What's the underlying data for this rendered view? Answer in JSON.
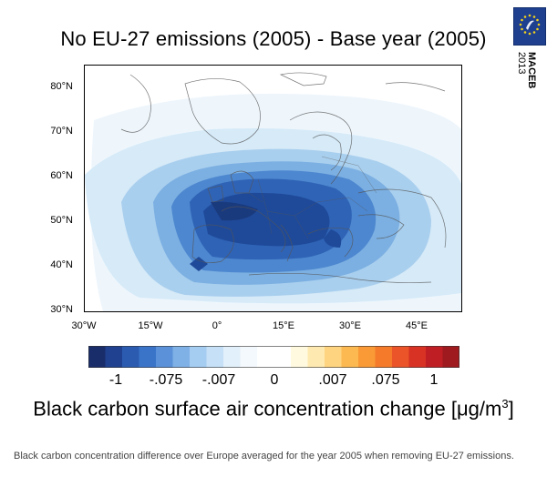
{
  "title": "No EU-27 emissions (2005) - Base year (2005)",
  "logo": {
    "text": "MACEB",
    "year": "2013",
    "background": "#1f3f8f",
    "star_color": "#f2d21b"
  },
  "map": {
    "lat_ticks": [
      "80°N",
      "70°N",
      "60°N",
      "50°N",
      "40°N",
      "30°N"
    ],
    "lon_ticks": [
      "30°W",
      "15°W",
      "0°",
      "15°E",
      "30°E",
      "45°E"
    ],
    "lat_range": [
      30,
      85
    ],
    "lon_range": [
      -30,
      55
    ]
  },
  "colorbar": {
    "colors": [
      "#1a2d6b",
      "#1f418f",
      "#2b5bb0",
      "#3a74c9",
      "#5a91d8",
      "#7fb0e6",
      "#a5cdf1",
      "#c6e0f7",
      "#e2f0fb",
      "#f4f9fd",
      "#ffffff",
      "#ffffff",
      "#fff9df",
      "#fee9b0",
      "#fed480",
      "#fdb951",
      "#f99a36",
      "#f57a2a",
      "#ea5428",
      "#d83225",
      "#bf1f24",
      "#9e1a1f"
    ],
    "labels": [
      "-1",
      "-.075",
      "-.007",
      "0",
      ".007",
      ".075",
      "1"
    ]
  },
  "variable_title": "Black carbon surface air concentration change [μg/m",
  "variable_unit_sup": "3",
  "variable_title_end": "]",
  "caption": "Black carbon concentration difference over Europe averaged for the year 2005 when removing EU-27 emissions."
}
